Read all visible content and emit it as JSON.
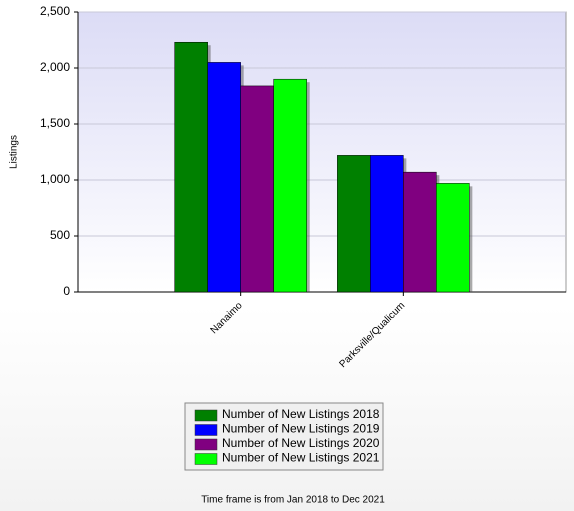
{
  "chart_data": {
    "type": "bar",
    "y_label": "Listings",
    "categories": [
      "Nanaimo",
      "Parksville/Qualicum"
    ],
    "series": [
      {
        "name": "Number of New Listings 2018",
        "color": "#008000",
        "values": [
          2230,
          1220
        ]
      },
      {
        "name": "Number of New Listings 2019",
        "color": "#0000ff",
        "values": [
          2050,
          1220
        ]
      },
      {
        "name": "Number of New Listings 2020",
        "color": "#800080",
        "values": [
          1840,
          1070
        ]
      },
      {
        "name": "Number of New Listings 2021",
        "color": "#00ff00",
        "values": [
          1900,
          970
        ]
      }
    ],
    "ylim": [
      0,
      2500
    ],
    "yticks": [
      0,
      500,
      {
        "value": 1000,
        "label": "1,000"
      },
      {
        "value": 1500,
        "label": "1,500"
      },
      {
        "value": 2000,
        "label": "2,000"
      },
      {
        "value": 2500,
        "label": "2,500"
      }
    ],
    "grid": true,
    "footnote": "Time frame is from Jan 2018 to Dec 2021"
  }
}
